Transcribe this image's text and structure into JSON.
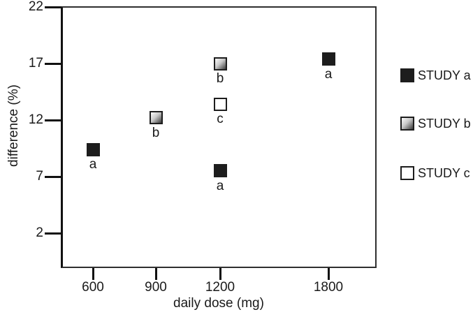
{
  "chart_data": {
    "type": "scatter",
    "title": "",
    "xlabel": "daily dose (mg)",
    "ylabel": "difference (%)",
    "x_ticks": [
      600,
      900,
      1200,
      1800
    ],
    "y_ticks": [
      22,
      17,
      12,
      7,
      2
    ],
    "ylim": [
      2,
      22
    ],
    "grid": false,
    "series": [
      {
        "name": "STUDY a",
        "marker": "filled-black-square",
        "points": [
          {
            "x": 600,
            "y": 9.4,
            "label": "a"
          },
          {
            "x": 1200,
            "y": 7.5,
            "label": "a"
          },
          {
            "x": 1800,
            "y": 17.4,
            "label": "a"
          }
        ]
      },
      {
        "name": "STUDY b",
        "marker": "gradient-gray-square",
        "points": [
          {
            "x": 900,
            "y": 12.2,
            "label": "b"
          },
          {
            "x": 1200,
            "y": 17.0,
            "label": "b"
          }
        ]
      },
      {
        "name": "STUDY c",
        "marker": "open-white-square",
        "points": [
          {
            "x": 1200,
            "y": 13.4,
            "label": "c"
          }
        ]
      }
    ],
    "legend": {
      "position": "right",
      "entries": [
        {
          "name": "STUDY a",
          "marker": "filled-black-square"
        },
        {
          "name": "STUDY b",
          "marker": "gradient-gray-square"
        },
        {
          "name": "STUDY c",
          "marker": "open-white-square"
        }
      ]
    }
  },
  "colors": {
    "marker_black": "#1d1d1d",
    "marker_gradient_light": "#fbfbfb",
    "marker_gradient_dark": "#3a3a3a",
    "axis": "#111111",
    "background": "#ffffff"
  }
}
